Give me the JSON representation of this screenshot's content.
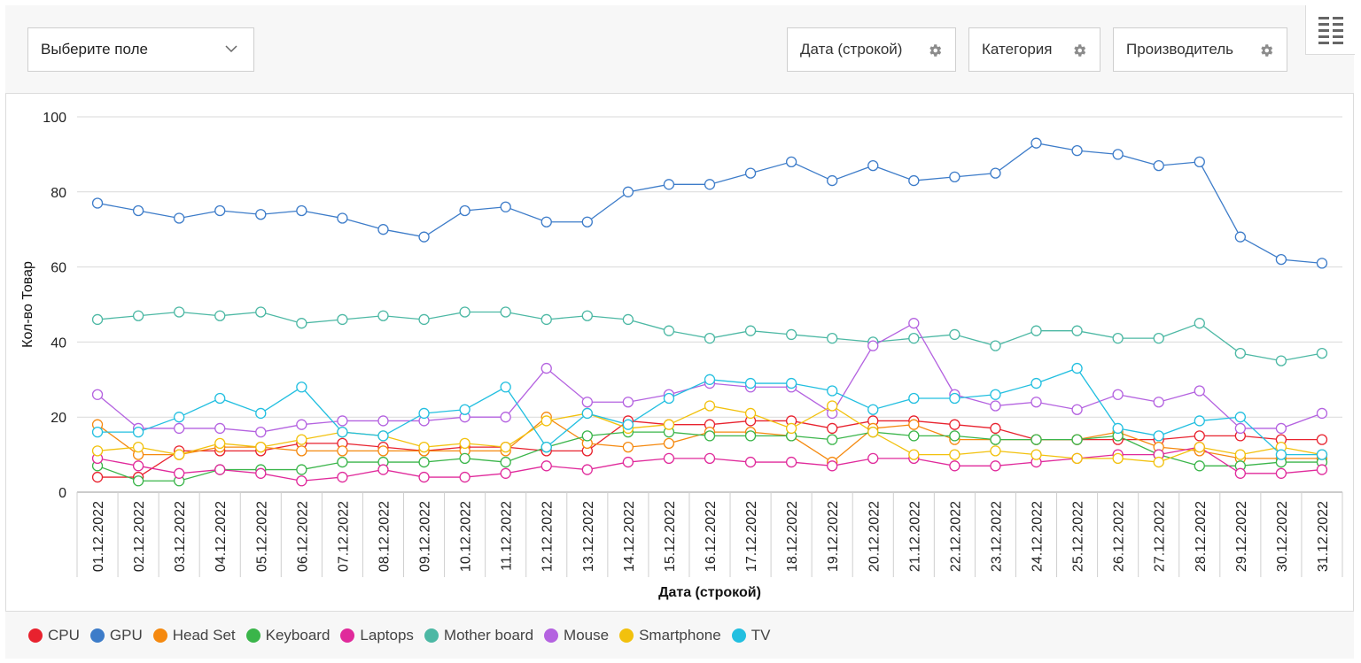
{
  "toolbar": {
    "field_select": "Выберите поле",
    "pills": [
      "Дата (строкой)",
      "Категория",
      "Производитель"
    ]
  },
  "icons": {
    "select_chevron": "chevron-down-icon",
    "pill_settings": "gear-icon",
    "menu": "table-menu-icon"
  },
  "chart_data": {
    "type": "line",
    "xlabel": "Дата (строкой)",
    "ylabel": "Кол-во Товар",
    "ylim": [
      0,
      100
    ],
    "yticks": [
      0,
      20,
      40,
      60,
      80,
      100
    ],
    "grid": "horizontal",
    "legend": "bottom",
    "categories": [
      "01.12.2022",
      "02.12.2022",
      "03.12.2022",
      "04.12.2022",
      "05.12.2022",
      "06.12.2022",
      "07.12.2022",
      "08.12.2022",
      "09.12.2022",
      "10.12.2022",
      "11.12.2022",
      "12.12.2022",
      "13.12.2022",
      "14.12.2022",
      "15.12.2022",
      "16.12.2022",
      "17.12.2022",
      "18.12.2022",
      "19.12.2022",
      "20.12.2022",
      "21.12.2022",
      "22.12.2022",
      "23.12.2022",
      "24.12.2022",
      "25.12.2022",
      "26.12.2022",
      "27.12.2022",
      "28.12.2022",
      "29.12.2022",
      "30.12.2022",
      "31.12.2022"
    ],
    "series": [
      {
        "name": "CPU",
        "color": "#e8222e",
        "values": [
          4,
          4,
          11,
          11,
          11,
          13,
          13,
          12,
          11,
          12,
          12,
          11,
          11,
          19,
          18,
          18,
          19,
          19,
          17,
          19,
          19,
          18,
          17,
          14,
          14,
          14,
          14,
          15,
          15,
          14,
          14
        ]
      },
      {
        "name": "GPU",
        "color": "#3d7cc9",
        "values": [
          77,
          75,
          73,
          75,
          74,
          75,
          73,
          70,
          68,
          75,
          76,
          72,
          72,
          80,
          82,
          82,
          85,
          88,
          83,
          87,
          83,
          84,
          85,
          93,
          91,
          90,
          87,
          88,
          68,
          62,
          61
        ]
      },
      {
        "name": "Head Set",
        "color": "#f5890f",
        "values": [
          18,
          10,
          10,
          12,
          12,
          11,
          11,
          11,
          11,
          11,
          11,
          20,
          13,
          12,
          13,
          16,
          16,
          15,
          8,
          17,
          18,
          14,
          14,
          14,
          14,
          16,
          12,
          11,
          9,
          9,
          9
        ]
      },
      {
        "name": "Keyboard",
        "color": "#3ab54a",
        "values": [
          7,
          3,
          3,
          6,
          6,
          6,
          8,
          8,
          8,
          9,
          8,
          12,
          15,
          16,
          16,
          15,
          15,
          15,
          14,
          16,
          15,
          15,
          14,
          14,
          14,
          15,
          10,
          7,
          7,
          8,
          8
        ]
      },
      {
        "name": "Laptops",
        "color": "#e02a9b",
        "values": [
          9,
          7,
          5,
          6,
          5,
          3,
          4,
          6,
          4,
          4,
          5,
          7,
          6,
          8,
          9,
          9,
          8,
          8,
          7,
          9,
          9,
          7,
          7,
          8,
          9,
          10,
          10,
          12,
          5,
          5,
          6
        ]
      },
      {
        "name": "Mother board",
        "color": "#4cb8a4",
        "values": [
          46,
          47,
          48,
          47,
          48,
          45,
          46,
          47,
          46,
          48,
          48,
          46,
          47,
          46,
          43,
          41,
          43,
          42,
          41,
          40,
          41,
          42,
          39,
          43,
          43,
          41,
          41,
          45,
          37,
          35,
          37
        ]
      },
      {
        "name": "Mouse",
        "color": "#b462e0",
        "values": [
          26,
          17,
          17,
          17,
          16,
          18,
          19,
          19,
          19,
          20,
          20,
          33,
          24,
          24,
          26,
          29,
          28,
          28,
          21,
          39,
          45,
          26,
          23,
          24,
          22,
          26,
          24,
          27,
          17,
          17,
          21
        ]
      },
      {
        "name": "Smartphone",
        "color": "#f2c10d",
        "values": [
          11,
          12,
          10,
          13,
          12,
          14,
          16,
          15,
          12,
          13,
          12,
          19,
          21,
          17,
          18,
          23,
          21,
          17,
          23,
          16,
          10,
          10,
          11,
          10,
          9,
          9,
          8,
          12,
          10,
          12,
          10
        ]
      },
      {
        "name": "TV",
        "color": "#22bfe0",
        "values": [
          16,
          16,
          20,
          25,
          21,
          28,
          16,
          15,
          21,
          22,
          28,
          12,
          21,
          18,
          25,
          30,
          29,
          29,
          27,
          22,
          25,
          25,
          26,
          29,
          33,
          17,
          15,
          19,
          20,
          10,
          10
        ]
      }
    ]
  }
}
